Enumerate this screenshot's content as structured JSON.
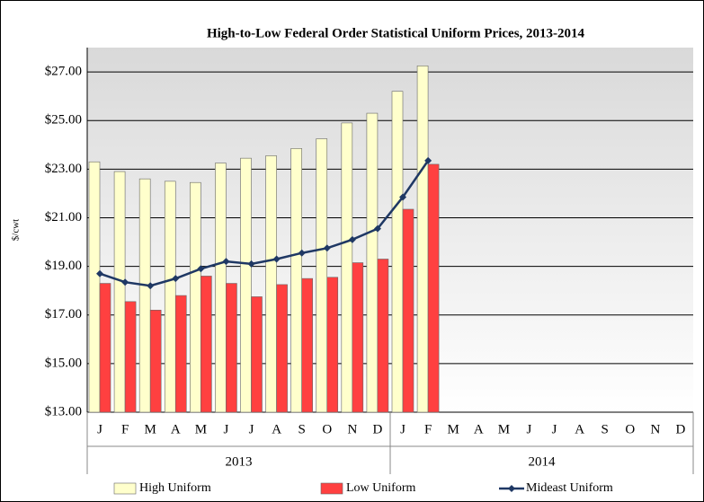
{
  "chart_data": {
    "type": "bar",
    "title": "High-to-Low Federal Order Statistical Uniform Prices, 2013-2014",
    "y_label": "$/cwt",
    "categories": [
      "J",
      "F",
      "M",
      "A",
      "M",
      "J",
      "J",
      "A",
      "S",
      "O",
      "N",
      "D",
      "J",
      "F",
      "M",
      "A",
      "M",
      "J",
      "J",
      "A",
      "S",
      "O",
      "N",
      "D"
    ],
    "x_groups": [
      "2013",
      "2014"
    ],
    "series": [
      {
        "name": "High Uniform",
        "type": "bar",
        "color": "#ffffcc",
        "values": [
          23.3,
          22.9,
          22.6,
          22.5,
          22.45,
          23.25,
          23.45,
          23.55,
          23.85,
          24.25,
          24.9,
          25.3,
          26.2,
          27.25,
          null,
          null,
          null,
          null,
          null,
          null,
          null,
          null,
          null,
          null
        ]
      },
      {
        "name": "Low Uniform",
        "type": "bar",
        "color": "#ff4040",
        "values": [
          18.3,
          17.55,
          17.2,
          17.8,
          18.6,
          18.3,
          17.75,
          18.25,
          18.5,
          18.55,
          19.15,
          19.3,
          21.35,
          23.2,
          null,
          null,
          null,
          null,
          null,
          null,
          null,
          null,
          null,
          null
        ]
      },
      {
        "name": "Mideast Uniform",
        "type": "line",
        "color": "#1f3864",
        "values": [
          18.7,
          18.35,
          18.2,
          18.5,
          18.9,
          19.2,
          19.1,
          19.3,
          19.55,
          19.75,
          20.1,
          20.55,
          21.85,
          23.35,
          null,
          null,
          null,
          null,
          null,
          null,
          null,
          null,
          null,
          null
        ]
      }
    ],
    "ylim": [
      13,
      28
    ],
    "yticks": [
      {
        "value": 13,
        "label": "$13.00"
      },
      {
        "value": 15,
        "label": "$15.00"
      },
      {
        "value": 17,
        "label": "$17.00"
      },
      {
        "value": 19,
        "label": "$19.00"
      },
      {
        "value": 21,
        "label": "$21.00"
      },
      {
        "value": 23,
        "label": "$23.00"
      },
      {
        "value": 25,
        "label": "$25.00"
      },
      {
        "value": 27,
        "label": "$27.00"
      }
    ],
    "grid": true,
    "legend": "bottom"
  }
}
